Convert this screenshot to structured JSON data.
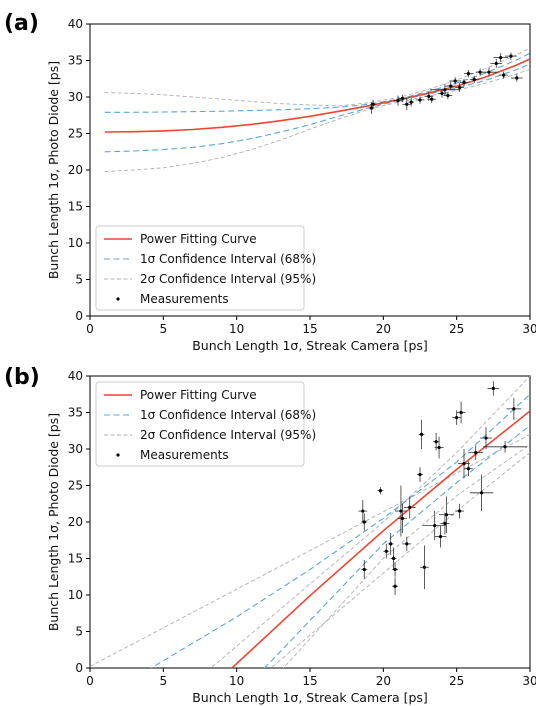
{
  "chart_data": [
    {
      "panel": "(a)",
      "type": "line",
      "xlabel": "Bunch Length 1σ, Streak Camera [ps]",
      "ylabel": "Bunch Length 1σ, Photo Diode [ps]",
      "xlim": [
        0,
        30
      ],
      "ylim": [
        0,
        40
      ],
      "xticks": [
        0,
        5,
        10,
        15,
        20,
        25,
        30
      ],
      "yticks": [
        0,
        5,
        10,
        15,
        20,
        25,
        30,
        35,
        40
      ],
      "legend": {
        "position": "lower-left",
        "entries": [
          "Power Fitting Curve",
          "1σ Confidence Interval (68%)",
          "2σ Confidence Interval (95%)",
          "Measurements"
        ]
      },
      "curves": {
        "x": [
          1,
          3,
          5,
          7,
          9,
          11,
          13,
          15,
          17,
          19,
          21,
          23,
          25,
          27,
          29,
          30
        ],
        "fit": [
          25.2,
          25.25,
          25.35,
          25.55,
          25.85,
          26.25,
          26.75,
          27.35,
          28.05,
          28.8,
          29.6,
          30.5,
          31.5,
          32.75,
          34.3,
          35.2
        ],
        "ci68_upper": [
          27.9,
          27.9,
          27.95,
          28.0,
          28.05,
          28.15,
          28.25,
          28.4,
          28.6,
          29.0,
          29.7,
          30.7,
          31.9,
          33.3,
          35.0,
          36.0
        ],
        "ci68_lower": [
          22.5,
          22.6,
          22.8,
          23.1,
          23.6,
          24.3,
          25.2,
          26.2,
          27.4,
          28.5,
          29.5,
          30.4,
          31.2,
          32.3,
          33.7,
          34.5
        ],
        "ci95_upper": [
          30.6,
          30.5,
          30.3,
          30.0,
          29.7,
          29.4,
          29.1,
          28.9,
          28.8,
          29.2,
          29.9,
          31.0,
          32.3,
          33.9,
          35.7,
          36.7
        ],
        "ci95_lower": [
          19.8,
          20.0,
          20.3,
          20.9,
          21.7,
          22.8,
          24.1,
          25.6,
          27.0,
          28.3,
          29.3,
          30.1,
          30.9,
          31.9,
          33.1,
          33.8
        ]
      },
      "measurements": [
        {
          "x": 19.2,
          "y": 28.5,
          "xerr": 0.2,
          "yerr": 0.8
        },
        {
          "x": 19.3,
          "y": 29.0,
          "xerr": 0.2,
          "yerr": 0.6
        },
        {
          "x": 21.0,
          "y": 29.5,
          "xerr": 0.3,
          "yerr": 0.7
        },
        {
          "x": 21.3,
          "y": 29.8,
          "xerr": 0.3,
          "yerr": 0.5
        },
        {
          "x": 21.6,
          "y": 29.0,
          "xerr": 0.3,
          "yerr": 0.8
        },
        {
          "x": 21.9,
          "y": 29.3,
          "xerr": 0.2,
          "yerr": 0.6
        },
        {
          "x": 22.5,
          "y": 29.6,
          "xerr": 0.3,
          "yerr": 0.5
        },
        {
          "x": 23.1,
          "y": 30.1,
          "xerr": 0.3,
          "yerr": 0.6
        },
        {
          "x": 23.3,
          "y": 29.7,
          "xerr": 0.3,
          "yerr": 0.5
        },
        {
          "x": 24.0,
          "y": 30.5,
          "xerr": 0.3,
          "yerr": 0.6
        },
        {
          "x": 24.2,
          "y": 31.0,
          "xerr": 1.0,
          "yerr": 0.8
        },
        {
          "x": 24.4,
          "y": 30.2,
          "xerr": 0.3,
          "yerr": 0.5
        },
        {
          "x": 24.6,
          "y": 31.5,
          "xerr": 0.3,
          "yerr": 0.6
        },
        {
          "x": 24.9,
          "y": 32.2,
          "xerr": 0.4,
          "yerr": 0.5
        },
        {
          "x": 25.2,
          "y": 31.3,
          "xerr": 0.3,
          "yerr": 0.6
        },
        {
          "x": 25.5,
          "y": 32.0,
          "xerr": 0.3,
          "yerr": 0.5
        },
        {
          "x": 25.8,
          "y": 33.2,
          "xerr": 0.3,
          "yerr": 0.5
        },
        {
          "x": 26.2,
          "y": 32.4,
          "xerr": 0.3,
          "yerr": 0.5
        },
        {
          "x": 26.6,
          "y": 33.4,
          "xerr": 0.3,
          "yerr": 0.5
        },
        {
          "x": 27.2,
          "y": 33.4,
          "xerr": 0.6,
          "yerr": 0.6
        },
        {
          "x": 27.7,
          "y": 34.6,
          "xerr": 0.4,
          "yerr": 0.6
        },
        {
          "x": 28.0,
          "y": 35.4,
          "xerr": 0.5,
          "yerr": 0.6
        },
        {
          "x": 28.2,
          "y": 33.0,
          "xerr": 0.3,
          "yerr": 0.5
        },
        {
          "x": 28.7,
          "y": 35.6,
          "xerr": 0.4,
          "yerr": 0.5
        },
        {
          "x": 29.1,
          "y": 32.6,
          "xerr": 0.4,
          "yerr": 0.5
        }
      ]
    },
    {
      "panel": "(b)",
      "type": "line",
      "xlabel": "Bunch Length 1σ, Streak Camera [ps]",
      "ylabel": "Bunch Length 1σ, Photo Diode [ps]",
      "xlim": [
        0,
        30
      ],
      "ylim": [
        0,
        40
      ],
      "xticks": [
        0,
        5,
        10,
        15,
        20,
        25,
        30
      ],
      "yticks": [
        0,
        5,
        10,
        15,
        20,
        25,
        30,
        35,
        40
      ],
      "legend": {
        "position": "top-left",
        "entries": [
          "Power Fitting Curve",
          "1σ Confidence Interval (68%)",
          "2σ Confidence Interval (95%)",
          "Measurements"
        ]
      },
      "curves": {
        "x": [
          0,
          5,
          10,
          15,
          20,
          25,
          30
        ],
        "fit": [
          null,
          null,
          0.6,
          9.9,
          18.8,
          27.2,
          35.2
        ],
        "ci68_upper": [
          null,
          1.0,
          7.0,
          13.5,
          20.5,
          28.2,
          37.5
        ],
        "ci68_lower": [
          null,
          null,
          null,
          6.5,
          17.0,
          25.4,
          33.2
        ],
        "ci95_upper": [
          0.2,
          5.5,
          10.8,
          16.1,
          21.4,
          26.7,
          32.0
        ],
        "ci95_lower": [
          null,
          null,
          null,
          4.0,
          15.0,
          23.6,
          30.6
        ],
        "ci95_upper2": [
          null,
          null,
          3.0,
          11.5,
          20.0,
          29.5,
          40.0
        ],
        "ci95_lower2": [
          null,
          null,
          null,
          null,
          13.0,
          21.5,
          29.5
        ]
      },
      "measurements": [
        {
          "x": 18.6,
          "y": 21.5,
          "xerr": 0.3,
          "yerr": 1.5
        },
        {
          "x": 18.7,
          "y": 20.0,
          "xerr": 0.2,
          "yerr": 1.2
        },
        {
          "x": 18.7,
          "y": 13.5,
          "xerr": 0.2,
          "yerr": 1.3
        },
        {
          "x": 19.8,
          "y": 24.3,
          "xerr": 0.2,
          "yerr": 0.5
        },
        {
          "x": 20.2,
          "y": 16.0,
          "xerr": 0.2,
          "yerr": 1.0
        },
        {
          "x": 20.5,
          "y": 17.0,
          "xerr": 0.2,
          "yerr": 1.5
        },
        {
          "x": 20.7,
          "y": 15.0,
          "xerr": 0.2,
          "yerr": 1.5
        },
        {
          "x": 20.8,
          "y": 13.5,
          "xerr": 0.2,
          "yerr": 1.0
        },
        {
          "x": 20.8,
          "y": 11.2,
          "xerr": 0.2,
          "yerr": 1.2
        },
        {
          "x": 21.2,
          "y": 21.5,
          "xerr": 0.4,
          "yerr": 3.5
        },
        {
          "x": 21.3,
          "y": 20.5,
          "xerr": 0.3,
          "yerr": 2.0
        },
        {
          "x": 21.8,
          "y": 22.0,
          "xerr": 0.4,
          "yerr": 1.5
        },
        {
          "x": 21.6,
          "y": 17.0,
          "xerr": 0.3,
          "yerr": 1.0
        },
        {
          "x": 22.5,
          "y": 26.5,
          "xerr": 0.2,
          "yerr": 1.0
        },
        {
          "x": 22.6,
          "y": 32.0,
          "xerr": 0.2,
          "yerr": 2.0
        },
        {
          "x": 22.8,
          "y": 13.8,
          "xerr": 0.3,
          "yerr": 3.0
        },
        {
          "x": 23.5,
          "y": 19.5,
          "xerr": 0.8,
          "yerr": 2.0
        },
        {
          "x": 23.6,
          "y": 31.0,
          "xerr": 0.2,
          "yerr": 1.2
        },
        {
          "x": 23.8,
          "y": 30.2,
          "xerr": 0.3,
          "yerr": 1.5
        },
        {
          "x": 23.9,
          "y": 18.0,
          "xerr": 0.4,
          "yerr": 1.5
        },
        {
          "x": 24.3,
          "y": 21.0,
          "xerr": 0.5,
          "yerr": 2.5
        },
        {
          "x": 24.2,
          "y": 19.8,
          "xerr": 0.3,
          "yerr": 1.5
        },
        {
          "x": 25.0,
          "y": 34.3,
          "xerr": 0.3,
          "yerr": 1.0
        },
        {
          "x": 25.2,
          "y": 21.5,
          "xerr": 0.3,
          "yerr": 1.0
        },
        {
          "x": 25.3,
          "y": 35.0,
          "xerr": 0.3,
          "yerr": 1.5
        },
        {
          "x": 25.5,
          "y": 28.0,
          "xerr": 0.4,
          "yerr": 2.0
        },
        {
          "x": 25.8,
          "y": 27.3,
          "xerr": 0.3,
          "yerr": 1.0
        },
        {
          "x": 26.3,
          "y": 29.5,
          "xerr": 0.5,
          "yerr": 1.0
        },
        {
          "x": 26.7,
          "y": 24.0,
          "xerr": 0.8,
          "yerr": 2.5
        },
        {
          "x": 27.0,
          "y": 31.5,
          "xerr": 0.4,
          "yerr": 1.5
        },
        {
          "x": 27.5,
          "y": 38.3,
          "xerr": 0.4,
          "yerr": 1.0
        },
        {
          "x": 28.3,
          "y": 30.3,
          "xerr": 1.5,
          "yerr": 0.8
        },
        {
          "x": 28.9,
          "y": 35.5,
          "xerr": 0.5,
          "yerr": 1.5
        }
      ]
    }
  ],
  "colors": {
    "fit": "#ee4433",
    "ci68": "#5aa6dd",
    "ci95": "#b0b0b0",
    "marker": "#000000",
    "legend_border": "#cccccc"
  }
}
